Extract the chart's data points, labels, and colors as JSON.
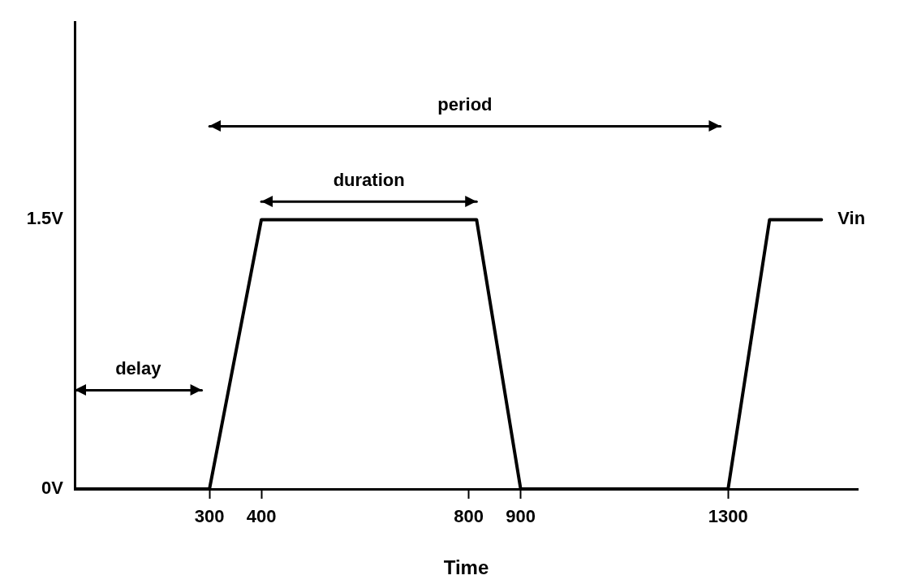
{
  "chart_data": {
    "type": "line",
    "xlabel": "Time",
    "xlim": [
      40,
      1550
    ],
    "ylim": [
      0,
      2.6
    ],
    "xticks": [
      300,
      400,
      800,
      900,
      1300
    ],
    "yticks": [
      {
        "value": 0,
        "label": "0V"
      },
      {
        "value": 1.5,
        "label": "1.5V"
      }
    ],
    "grid": false,
    "legend": false,
    "marker": "none",
    "line_style": "solid",
    "series": [
      {
        "name": "Vin",
        "color": "#000000",
        "x": [
          40,
          300,
          400,
          815,
          900,
          1300,
          1380,
          1480
        ],
        "values": [
          0,
          0,
          1.5,
          1.5,
          0,
          0,
          1.5,
          1.5
        ]
      },
      {
        "color": "#000000",
        "x": [
          40,
          285
        ],
        "values": [
          0.55,
          0.55
        ]
      },
      {
        "color": "#000000",
        "x": [
          400,
          815
        ],
        "values": [
          1.6,
          1.6
        ]
      },
      {
        "color": "#000000",
        "x": [
          300,
          1285
        ],
        "values": [
          2.02,
          2.02
        ]
      }
    ],
    "annotations": [
      "delay",
      "duration",
      "period"
    ]
  }
}
